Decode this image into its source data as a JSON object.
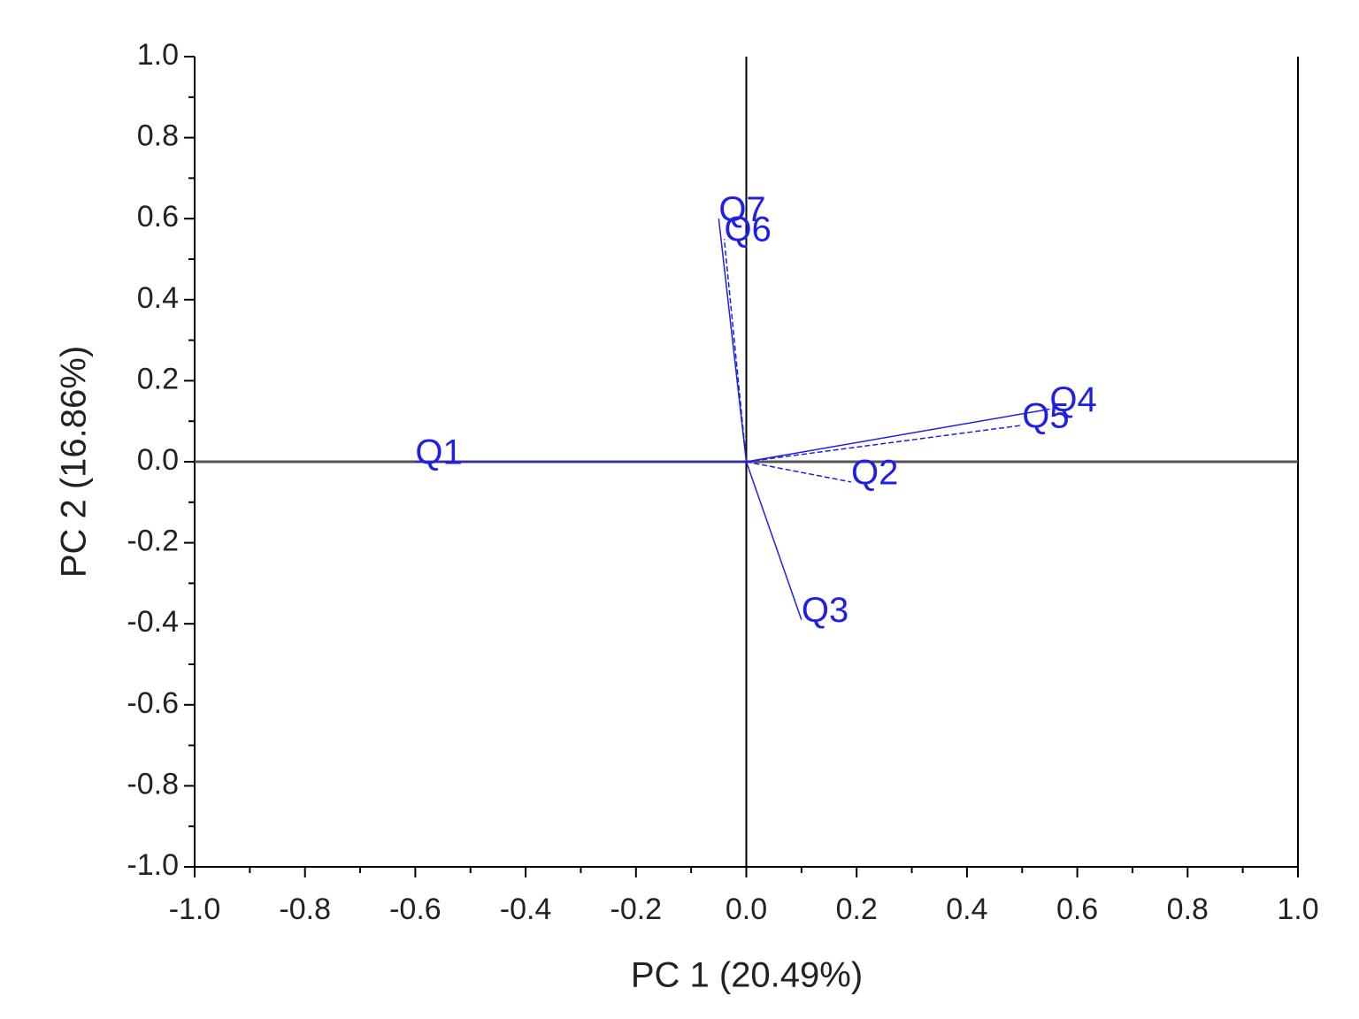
{
  "chart_data": {
    "type": "vector",
    "x_label": "PC 1 (20.49%)",
    "y_label": "PC 2 (16.86%)",
    "labels": [
      "Q1",
      "Q2",
      "Q3",
      "Q4",
      "Q5",
      "Q6",
      "Q7"
    ],
    "x": [
      -0.6,
      0.19,
      0.1,
      0.55,
      0.5,
      -0.04,
      -0.05
    ],
    "y": [
      0.0,
      -0.05,
      -0.39,
      0.13,
      0.09,
      0.55,
      0.6
    ],
    "line_styles": [
      "solid",
      "dashed",
      "solid",
      "solid",
      "dashed",
      "dashed",
      "solid"
    ],
    "color": "#1f1fe6",
    "xlim": [
      -1,
      1
    ],
    "ylim": [
      -1,
      1
    ],
    "xticks": [
      {
        "value": -1,
        "label": "-1.0"
      },
      -0.8,
      -0.6,
      -0.4,
      -0.2,
      {
        "value": 0,
        "label": "0.0"
      },
      0.2,
      0.4,
      0.6,
      0.8,
      {
        "value": 1,
        "label": "1.0"
      }
    ],
    "yticks": [
      {
        "value": -1,
        "label": "-1.0"
      },
      -0.8,
      -0.6,
      -0.4,
      -0.2,
      {
        "value": 0,
        "label": "0.0"
      },
      0.2,
      0.4,
      0.6,
      0.8,
      {
        "value": 1,
        "label": "1.0"
      }
    ],
    "zero_lines": true
  }
}
